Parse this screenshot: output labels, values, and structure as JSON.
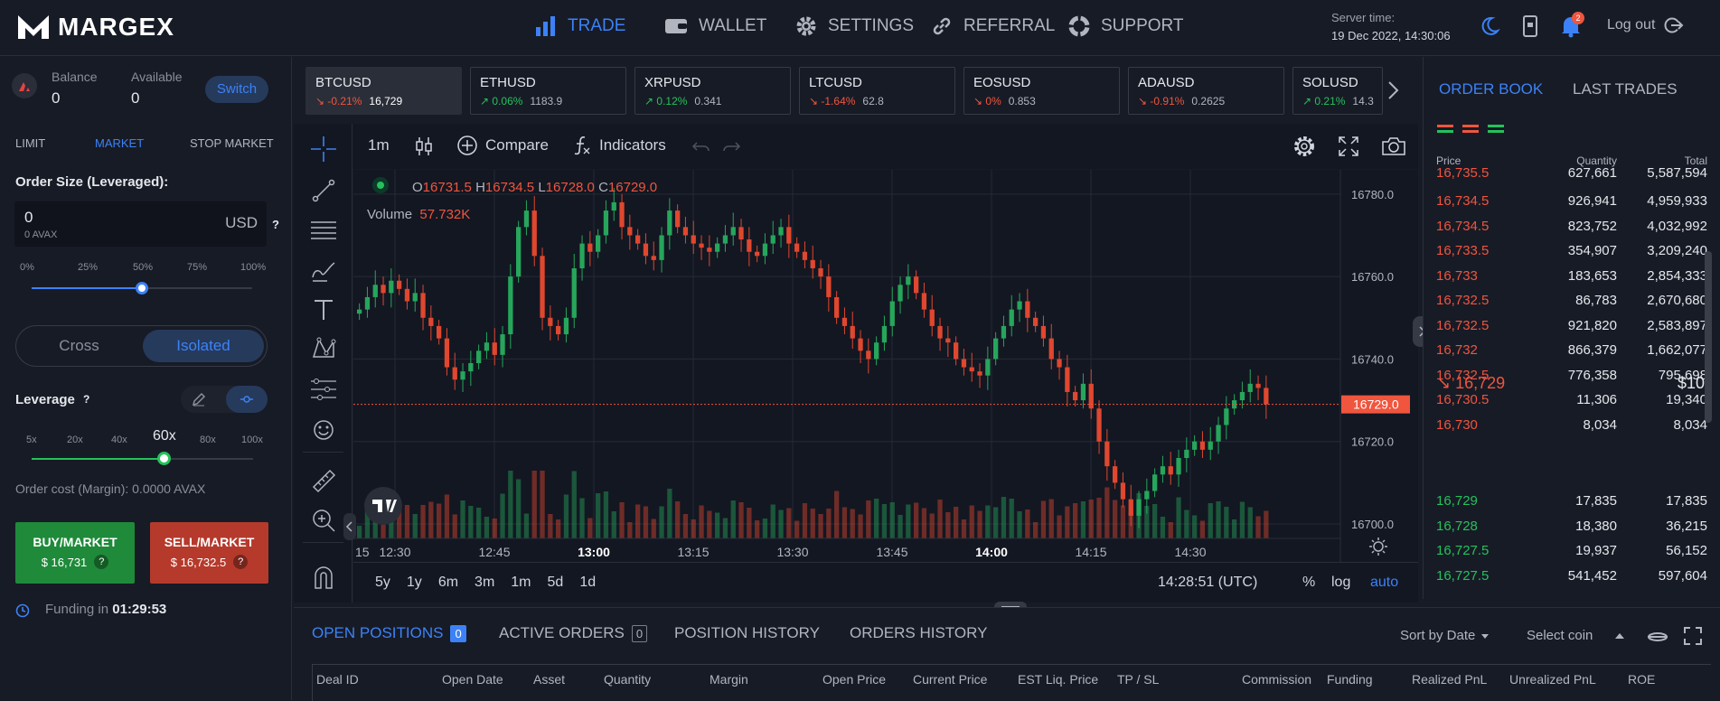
{
  "app": {
    "logo_text": "MARGEX"
  },
  "nav": [
    {
      "label": "TRADE",
      "icon": "bar-chart-icon",
      "active": true
    },
    {
      "label": "WALLET",
      "icon": "wallet-icon"
    },
    {
      "label": "SETTINGS",
      "icon": "gear-icon"
    },
    {
      "label": "REFERRAL",
      "icon": "link-icon"
    },
    {
      "label": "SUPPORT",
      "icon": "lifebuoy-icon"
    }
  ],
  "server": {
    "label": "Server time:",
    "value": "19 Dec 2022, 14:30:06"
  },
  "notifications": {
    "count": "2"
  },
  "logout_label": "Log out",
  "account": {
    "balance_label": "Balance",
    "balance": "0",
    "available_label": "Available",
    "available": "0",
    "switch_label": "Switch"
  },
  "order_types": {
    "limit": "LIMIT",
    "market": "MARKET",
    "stop": "STOP MARKET"
  },
  "order_size": {
    "label": "Order Size (Leveraged):",
    "value": "0",
    "sub": "0 AVAX",
    "currency": "USD",
    "help": "?"
  },
  "size_slider": {
    "ticks": [
      "0%",
      "25%",
      "50%",
      "75%",
      "100%"
    ],
    "value_percent": 50
  },
  "margin_mode": {
    "cross": "Cross",
    "isolated": "Isolated",
    "selected": "Isolated"
  },
  "leverage": {
    "label": "Leverage",
    "help": "?",
    "ticks": [
      "5x",
      "20x",
      "40x",
      "60x",
      "80x",
      "100x"
    ],
    "selected": "60x"
  },
  "order_cost": "Order cost (Margin): 0.0000 AVAX",
  "buy": {
    "label": "BUY/MARKET",
    "price": "$ 16,731",
    "help": "?"
  },
  "sell": {
    "label": "SELL/MARKET",
    "price": "$ 16,732.5",
    "help": "?"
  },
  "funding": {
    "label": "Funding in",
    "value": "01:29:53"
  },
  "tickers": [
    {
      "symbol": "BTCUSD",
      "change": "-0.21%",
      "price": "16,729",
      "dir": "neg",
      "active": true
    },
    {
      "symbol": "ETHUSD",
      "change": "0.06%",
      "price": "1183.9",
      "dir": "pos"
    },
    {
      "symbol": "XRPUSD",
      "change": "0.12%",
      "price": "0.341",
      "dir": "pos"
    },
    {
      "symbol": "LTCUSD",
      "change": "-1.64%",
      "price": "62.8",
      "dir": "neg"
    },
    {
      "symbol": "EOSUSD",
      "change": "0%",
      "price": "0.853",
      "dir": "neg"
    },
    {
      "symbol": "ADAUSD",
      "change": "-0.91%",
      "price": "0.2625",
      "dir": "neg"
    },
    {
      "symbol": "SOLUSD",
      "change": "0.21%",
      "price": "14.3",
      "dir": "pos"
    }
  ],
  "chart_toolbar": {
    "interval": "1m",
    "compare": "Compare",
    "indicators": "Indicators"
  },
  "ohlc": {
    "o_label": "O",
    "o": "16731.5",
    "h_label": "H",
    "h": "16734.5",
    "l_label": "L",
    "l": "16728.0",
    "c_label": "C",
    "c": "16729.0",
    "volume_label": "Volume",
    "volume": "57.732K"
  },
  "chart_footer": {
    "ranges": [
      "5y",
      "1y",
      "6m",
      "3m",
      "1m",
      "5d",
      "1d"
    ],
    "time": "14:28:51 (UTC)",
    "percent": "%",
    "log": "log",
    "auto": "auto"
  },
  "chart_data": {
    "type": "candlestick",
    "price_ticks": [
      "16780.0",
      "16760.0",
      "16740.0",
      "16720.0",
      "16700.0"
    ],
    "ylim": [
      16693,
      16785
    ],
    "time_ticks": [
      "15",
      "12:30",
      "12:45",
      "13:00",
      "13:15",
      "13:30",
      "13:45",
      "14:00",
      "14:15",
      "14:30"
    ],
    "last_price": "16729.0",
    "last_value": 16729,
    "closes": [
      16752,
      16755,
      16758,
      16756,
      16759,
      16757,
      16754,
      16756,
      16750,
      16748,
      16745,
      16738,
      16735,
      16737,
      16739,
      16742,
      16744,
      16741,
      16746,
      16760,
      16772,
      16776,
      16765,
      16750,
      16748,
      16746,
      16750,
      16762,
      16768,
      16766,
      16770,
      16776,
      16778,
      16772,
      16770,
      16768,
      16765,
      16764,
      16770,
      16776,
      16772,
      16770,
      16768,
      16767,
      16766,
      16768,
      16770,
      16772,
      16769,
      16766,
      16765,
      16768,
      16770,
      16772,
      16768,
      16766,
      16764,
      16762,
      16760,
      16755,
      16750,
      16748,
      16745,
      16742,
      16740,
      16744,
      16748,
      16754,
      16758,
      16760,
      16756,
      16752,
      16748,
      16745,
      16744,
      16740,
      16738,
      16737,
      16736,
      16740,
      16745,
      16748,
      16752,
      16754,
      16750,
      16748,
      16745,
      16740,
      16738,
      16732,
      16730,
      16734,
      16728,
      16720,
      16714,
      16710,
      16706,
      16702,
      16706,
      16708,
      16712,
      16714,
      16712,
      16716,
      16718,
      16720,
      16718,
      16720,
      16724,
      16728,
      16730,
      16732,
      16734,
      16733,
      16729
    ]
  },
  "orderbook": {
    "tabs": [
      "ORDER BOOK",
      "LAST TRADES"
    ],
    "headers": {
      "price": "Price",
      "quantity": "Quantity",
      "total": "Total"
    },
    "asks": [
      [
        "16,735.5",
        "627,661",
        "5,587,594"
      ],
      [
        "16,734.5",
        "926,941",
        "4,959,933"
      ],
      [
        "16,734.5",
        "823,752",
        "4,032,992"
      ],
      [
        "16,733.5",
        "354,907",
        "3,209,240"
      ],
      [
        "16,733",
        "183,653",
        "2,854,333"
      ],
      [
        "16,732.5",
        "86,783",
        "2,670,680"
      ],
      [
        "16,732.5",
        "921,820",
        "2,583,897"
      ],
      [
        "16,732",
        "866,379",
        "1,662,077"
      ],
      [
        "16,732.5",
        "776,358",
        "795,698"
      ],
      [
        "16,730.5",
        "11,306",
        "19,340"
      ],
      [
        "16,730",
        "8,034",
        "8,034"
      ]
    ],
    "last_price": "16,729",
    "last_value": "$10",
    "bids": [
      [
        "16,729",
        "17,835",
        "17,835"
      ],
      [
        "16,728",
        "18,380",
        "36,215"
      ],
      [
        "16,727.5",
        "19,937",
        "56,152"
      ],
      [
        "16,727.5",
        "541,452",
        "597,604"
      ]
    ]
  },
  "bottom": {
    "tabs": [
      {
        "label": "OPEN POSITIONS",
        "count": "0",
        "active": true
      },
      {
        "label": "ACTIVE ORDERS",
        "count": "0"
      },
      {
        "label": "POSITION HISTORY"
      },
      {
        "label": "ORDERS HISTORY"
      }
    ],
    "sort_label": "Sort by Date",
    "select_coin": "Select coin",
    "columns": [
      "Deal ID",
      "Open Date",
      "Asset",
      "Quantity",
      "Margin",
      "Open Price",
      "Current Price",
      "EST Liq. Price",
      "TP / SL",
      "Commission",
      "Funding",
      "Realized PnL",
      "Unrealized PnL",
      "ROE"
    ]
  }
}
